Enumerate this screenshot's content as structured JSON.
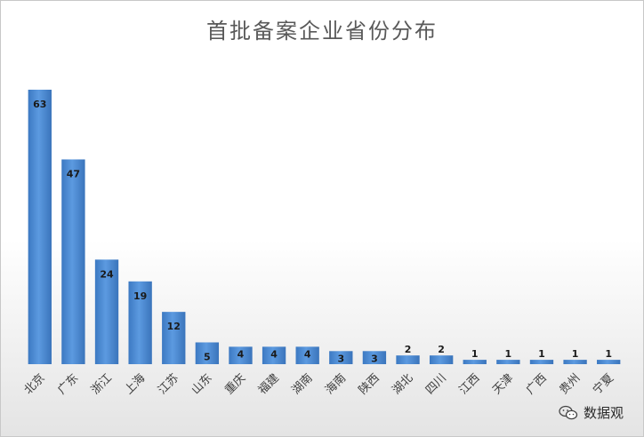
{
  "chart_data": {
    "type": "bar",
    "title": "首批备案企业省份分布",
    "categories": [
      "北京",
      "广东",
      "浙江",
      "上海",
      "江苏",
      "山东",
      "重庆",
      "福建",
      "湖南",
      "海南",
      "陕西",
      "湖北",
      "四川",
      "江西",
      "天津",
      "广西",
      "贵州",
      "宁夏"
    ],
    "values": [
      63,
      47,
      24,
      19,
      12,
      5,
      4,
      4,
      4,
      3,
      3,
      2,
      2,
      1,
      1,
      1,
      1,
      1
    ],
    "xlabel": "",
    "ylabel": "",
    "ylim": [
      0,
      65
    ],
    "grid": false,
    "legend": "none",
    "bar_color": "#4a8ad4",
    "data_labels": true
  },
  "watermark": {
    "text": "数据观"
  }
}
